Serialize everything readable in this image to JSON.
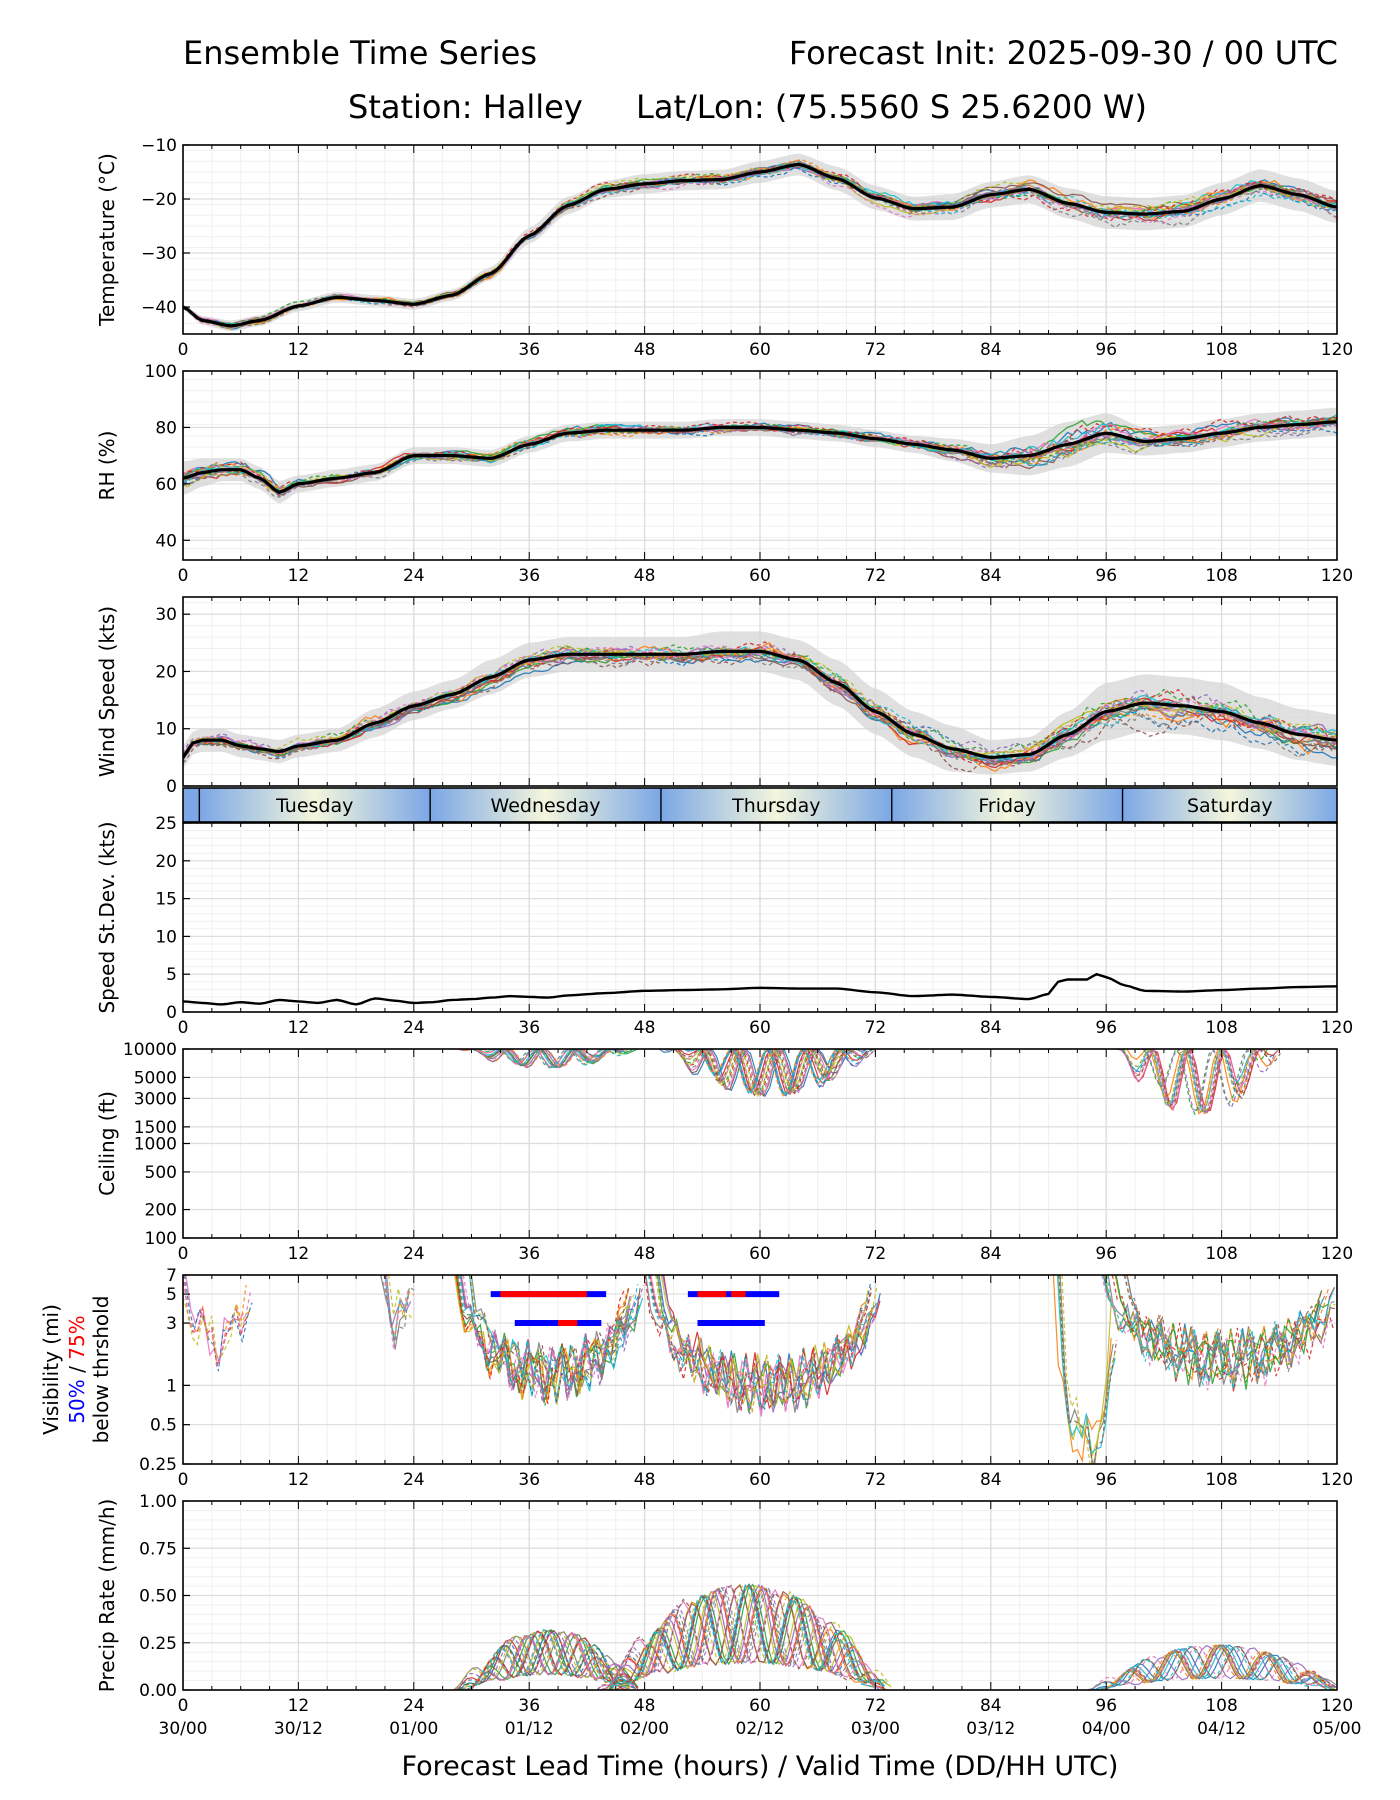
{
  "header": {
    "title_left": "Ensemble Time Series",
    "title_right": "Forecast Init: 2025-09-30 / 00 UTC",
    "station": "Station: Halley",
    "latlon": "Lat/Lon: (75.5560 S 25.6200 W)"
  },
  "colors": {
    "mean": "#000000",
    "spread": "#d3d3d3",
    "grid": "#dddddd",
    "band_blue": "#7ba7e6",
    "band_light": "#f4f6dc",
    "thr50": "#0000ff",
    "thr75": "#ff0000",
    "members": [
      "#1f77b4",
      "#ff7f0e",
      "#2ca02c",
      "#d62728",
      "#9467bd",
      "#8c564b",
      "#e377c2",
      "#7f7f7f",
      "#bcbd22",
      "#17becf"
    ]
  },
  "chart_data": {
    "type": "line",
    "x_ticks": [
      0,
      12,
      24,
      36,
      48,
      60,
      72,
      84,
      96,
      108,
      120
    ],
    "x_tick_labels": [
      "0",
      "12",
      "24",
      "36",
      "48",
      "60",
      "72",
      "84",
      "96",
      "108",
      "120"
    ],
    "valid_time_labels": [
      "30/00",
      "30/12",
      "01/00",
      "01/12",
      "02/00",
      "02/12",
      "03/00",
      "03/12",
      "04/00",
      "04/12",
      "05/00"
    ],
    "xlabel": "Forecast Lead Time (hours) / Valid Time (DD/HH UTC)",
    "xlim": [
      0,
      120
    ],
    "members_count": 20,
    "days": [
      {
        "label": "Tuesday",
        "start": 1.7,
        "end": 25.7
      },
      {
        "label": "Wednesday",
        "start": 25.7,
        "end": 49.7
      },
      {
        "label": "Thursday",
        "start": 49.7,
        "end": 73.7
      },
      {
        "label": "Friday",
        "start": 73.7,
        "end": 97.7
      },
      {
        "label": "Saturday",
        "start": 97.7,
        "end": 120
      }
    ],
    "panels": [
      {
        "id": "temperature",
        "type": "line",
        "ylabel": "Temperature (°C)",
        "ylim": [
          -45,
          -10
        ],
        "yticks": [
          -40,
          -30,
          -20,
          -10
        ],
        "ytick_labels": [
          "−40",
          "−30",
          "−20",
          "−10"
        ],
        "show_xtick_labels": true,
        "mean_x": [
          0,
          2,
          5,
          8,
          12,
          16,
          20,
          24,
          28,
          32,
          36,
          40,
          44,
          48,
          52,
          56,
          60,
          64,
          68,
          72,
          76,
          80,
          84,
          88,
          92,
          96,
          100,
          104,
          108,
          112,
          116,
          120
        ],
        "mean_y": [
          -40,
          -42.5,
          -43.5,
          -42.5,
          -39.8,
          -38.2,
          -38.8,
          -39.5,
          -37.8,
          -33.8,
          -26.8,
          -21.2,
          -18.2,
          -17.2,
          -16.6,
          -16.4,
          -15,
          -13.6,
          -16.2,
          -19.8,
          -21.8,
          -21.5,
          -19.2,
          -18.2,
          -20.8,
          -22.5,
          -22.8,
          -22.3,
          -20,
          -17.5,
          -19.2,
          -21.5
        ],
        "spread": [
          0.5,
          0.8,
          1,
          1,
          1,
          1,
          1,
          1,
          1,
          1.2,
          1.5,
          1.6,
          1.6,
          1.8,
          1.8,
          1.8,
          2,
          2,
          2.2,
          2.2,
          2.2,
          2.4,
          2.4,
          2.6,
          2.8,
          3,
          3,
          3,
          3,
          3,
          3,
          3
        ]
      },
      {
        "id": "rh",
        "type": "line",
        "ylabel": "RH (%)",
        "ylim": [
          33,
          100
        ],
        "yticks": [
          40,
          60,
          80,
          100
        ],
        "ytick_labels": [
          "40",
          "60",
          "80",
          "100"
        ],
        "show_xtick_labels": true,
        "mean_x": [
          0,
          2,
          4,
          6,
          8,
          10,
          12,
          16,
          20,
          24,
          28,
          32,
          36,
          40,
          44,
          48,
          52,
          56,
          60,
          64,
          68,
          72,
          76,
          80,
          84,
          88,
          92,
          96,
          100,
          104,
          108,
          112,
          116,
          120
        ],
        "mean_y": [
          62,
          64,
          65,
          65,
          62,
          57,
          60,
          62,
          64,
          70,
          70,
          69,
          74,
          78,
          79,
          79,
          79,
          80,
          80,
          79,
          78,
          76,
          74,
          72,
          69,
          70,
          74,
          78,
          75,
          76,
          78,
          80,
          81,
          82
        ],
        "spread": [
          6,
          5,
          4,
          4,
          4,
          4,
          3,
          3,
          3,
          3,
          3,
          3,
          3,
          3,
          3,
          3,
          3,
          3,
          3,
          3,
          3,
          3,
          3,
          4,
          5,
          7,
          8,
          7,
          5,
          5,
          5,
          5,
          5,
          5
        ]
      },
      {
        "id": "wind",
        "type": "line",
        "ylabel": "Wind Speed (kts)",
        "ylim": [
          0,
          33
        ],
        "yticks": [
          0,
          10,
          20,
          30
        ],
        "ytick_labels": [
          "0",
          "10",
          "20",
          "30"
        ],
        "show_xtick_labels": false,
        "mean_x": [
          0,
          1,
          2,
          4,
          6,
          8,
          10,
          12,
          16,
          20,
          24,
          28,
          32,
          36,
          40,
          44,
          48,
          52,
          56,
          60,
          64,
          68,
          72,
          76,
          80,
          84,
          88,
          92,
          96,
          100,
          104,
          108,
          112,
          116,
          120
        ],
        "mean_y": [
          5,
          7.5,
          8,
          8,
          7,
          6.5,
          6,
          7,
          8,
          11,
          14,
          16,
          19,
          22,
          23,
          23,
          23,
          23,
          23.5,
          23.5,
          22,
          18,
          13,
          9,
          6.5,
          5,
          5.5,
          9,
          13,
          14.5,
          14,
          13,
          11,
          9,
          8
        ],
        "spread": [
          2,
          2,
          2,
          2,
          2,
          2,
          2,
          2,
          2,
          2.5,
          2.5,
          2.5,
          3,
          3,
          3,
          3,
          3,
          3,
          3.5,
          3.5,
          3.5,
          4,
          4,
          4,
          4,
          3,
          3,
          4,
          5,
          5,
          5,
          5,
          4.5,
          4.5,
          4.5
        ]
      },
      {
        "id": "stdev",
        "type": "line",
        "ylabel": "Speed St.Dev. (kts)",
        "ylim": [
          0,
          25
        ],
        "yticks": [
          0,
          5,
          10,
          15,
          20,
          25
        ],
        "ytick_labels": [
          "0",
          "5",
          "10",
          "15",
          "20",
          "25"
        ],
        "show_xtick_labels": true,
        "mean_x": [
          0,
          2,
          4,
          6,
          8,
          10,
          12,
          14,
          16,
          18,
          20,
          22,
          24,
          26,
          28,
          30,
          32,
          34,
          36,
          38,
          40,
          44,
          48,
          52,
          56,
          60,
          64,
          68,
          72,
          76,
          80,
          84,
          88,
          90,
          91,
          92,
          94,
          95,
          96,
          98,
          100,
          104,
          108,
          112,
          116,
          120
        ],
        "mean_y": [
          1.4,
          1.2,
          1,
          1.3,
          1.1,
          1.6,
          1.4,
          1.2,
          1.6,
          1,
          1.8,
          1.5,
          1.2,
          1.3,
          1.6,
          1.7,
          1.9,
          2.1,
          2,
          1.9,
          2.2,
          2.5,
          2.8,
          2.9,
          3,
          3.2,
          3.1,
          3.1,
          2.6,
          2.1,
          2.3,
          2,
          1.7,
          2.4,
          4,
          4.3,
          4.3,
          5,
          4.6,
          3.5,
          2.8,
          2.7,
          2.9,
          3.1,
          3.3,
          3.4
        ]
      },
      {
        "id": "ceiling",
        "type": "line",
        "ylabel": "Ceiling (ft)",
        "scale": "log",
        "ylim": [
          100,
          10000
        ],
        "yticks": [
          100,
          200,
          500,
          1000,
          1500,
          3000,
          5000,
          10000
        ],
        "ytick_labels": [
          "100",
          "200",
          "500",
          "1000",
          "1500",
          "3000",
          "5000",
          "10000"
        ],
        "show_xtick_labels": true
      },
      {
        "id": "visibility",
        "type": "line",
        "ylabel": "Visibility (mi)",
        "ylabel_50": "50%",
        "ylabel_sep": " / ",
        "ylabel_75": "75%",
        "ylabel_sub": "below thrshold",
        "scale": "log",
        "ylim": [
          0.25,
          7
        ],
        "yticks": [
          0.25,
          0.5,
          1,
          3,
          5,
          7
        ],
        "ytick_labels": [
          "0.25",
          "0.5",
          "1",
          "3",
          "5",
          "7"
        ],
        "show_xtick_labels": true,
        "threshold_bars": [
          {
            "y": 5,
            "start": 32,
            "end": 44,
            "color": "#0000ff"
          },
          {
            "y": 5,
            "start": 33,
            "end": 42,
            "color": "#ff0000"
          },
          {
            "y": 3,
            "start": 34.5,
            "end": 43.5,
            "color": "#0000ff"
          },
          {
            "y": 3,
            "start": 39,
            "end": 41,
            "color": "#ff0000"
          },
          {
            "y": 5,
            "start": 52.5,
            "end": 62,
            "color": "#0000ff"
          },
          {
            "y": 5,
            "start": 53.5,
            "end": 56.5,
            "color": "#ff0000"
          },
          {
            "y": 5,
            "start": 57,
            "end": 58.5,
            "color": "#ff0000"
          },
          {
            "y": 3,
            "start": 53.5,
            "end": 60.5,
            "color": "#0000ff"
          }
        ]
      },
      {
        "id": "precip",
        "type": "line",
        "ylabel": "Precip Rate (mm/h)",
        "ylim": [
          0,
          1
        ],
        "yticks": [
          0,
          0.25,
          0.5,
          0.75,
          1
        ],
        "ytick_labels": [
          "0.00",
          "0.25",
          "0.50",
          "0.75",
          "1.00"
        ],
        "show_xtick_labels": true,
        "show_valid_labels": true
      }
    ]
  }
}
